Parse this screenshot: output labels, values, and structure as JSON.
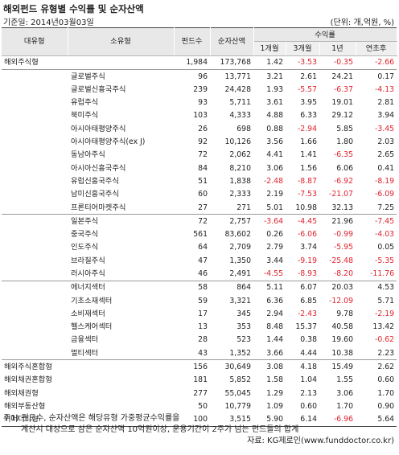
{
  "title": "해외펀드 유형별 수익률 및 순자산액",
  "base_date": "기준일: 2014년03월03일",
  "unit": "(단위: 개,억원, %)",
  "headers": {
    "major": "대유형",
    "minor": "소유형",
    "funds": "펀드수",
    "assets": "순자산액",
    "returns": "수익률",
    "m1": "1개월",
    "m3": "3개월",
    "y1": "1년",
    "ytd": "연초후"
  },
  "rows": [
    {
      "major": "해외주식형",
      "minor": "",
      "funds": "1,984",
      "assets": "173,768",
      "m1": "1.42",
      "m3": "-3.53",
      "y1": "-0.35",
      "ytd": "-2.66",
      "group_start": true
    },
    {
      "major": "",
      "minor": "글로벌주식",
      "funds": "96",
      "assets": "13,771",
      "m1": "3.21",
      "m3": "2.61",
      "y1": "24.21",
      "ytd": "0.17",
      "group_start": true
    },
    {
      "major": "",
      "minor": "글로벌신흥국주식",
      "funds": "239",
      "assets": "24,428",
      "m1": "1.93",
      "m3": "-5.57",
      "y1": "-6.37",
      "ytd": "-4.13"
    },
    {
      "major": "",
      "minor": "유럽주식",
      "funds": "93",
      "assets": "5,711",
      "m1": "3.61",
      "m3": "3.95",
      "y1": "19.01",
      "ytd": "2.81"
    },
    {
      "major": "",
      "minor": "북미주식",
      "funds": "103",
      "assets": "4,333",
      "m1": "4.88",
      "m3": "6.33",
      "y1": "29.12",
      "ytd": "3.94"
    },
    {
      "major": "",
      "minor": "아시아태평양주식",
      "funds": "26",
      "assets": "698",
      "m1": "0.88",
      "m3": "-2.94",
      "y1": "5.85",
      "ytd": "-3.45"
    },
    {
      "major": "",
      "minor": "아시아태평양주식(ex J)",
      "funds": "92",
      "assets": "10,126",
      "m1": "3.56",
      "m3": "1.66",
      "y1": "1.80",
      "ytd": "2.03"
    },
    {
      "major": "",
      "minor": "동남아주식",
      "funds": "72",
      "assets": "2,062",
      "m1": "4.41",
      "m3": "1.41",
      "y1": "-6.35",
      "ytd": "2.65"
    },
    {
      "major": "",
      "minor": "아시아신흥국주식",
      "funds": "84",
      "assets": "8,210",
      "m1": "3.06",
      "m3": "1.56",
      "y1": "6.06",
      "ytd": "0.41"
    },
    {
      "major": "",
      "minor": "유럽신흥국주식",
      "funds": "51",
      "assets": "1,838",
      "m1": "-2.48",
      "m3": "-8.87",
      "y1": "-6.92",
      "ytd": "-8.19"
    },
    {
      "major": "",
      "minor": "남미신흥국주식",
      "funds": "60",
      "assets": "2,333",
      "m1": "2.19",
      "m3": "-7.53",
      "y1": "-21.07",
      "ytd": "-6.09"
    },
    {
      "major": "",
      "minor": "프론티어마켓주식",
      "funds": "27",
      "assets": "271",
      "m1": "5.01",
      "m3": "10.98",
      "y1": "32.13",
      "ytd": "7.25"
    },
    {
      "major": "",
      "minor": "일본주식",
      "funds": "72",
      "assets": "2,757",
      "m1": "-3.64",
      "m3": "-4.45",
      "y1": "21.96",
      "ytd": "-7.45",
      "group_start": true
    },
    {
      "major": "",
      "minor": "중국주식",
      "funds": "561",
      "assets": "83,602",
      "m1": "0.26",
      "m3": "-6.06",
      "y1": "-0.99",
      "ytd": "-4.03"
    },
    {
      "major": "",
      "minor": "인도주식",
      "funds": "64",
      "assets": "2,709",
      "m1": "2.79",
      "m3": "3.74",
      "y1": "-5.95",
      "ytd": "0.05"
    },
    {
      "major": "",
      "minor": "브라질주식",
      "funds": "47",
      "assets": "1,350",
      "m1": "3.44",
      "m3": "-9.19",
      "y1": "-25.48",
      "ytd": "-5.35"
    },
    {
      "major": "",
      "minor": "러시아주식",
      "funds": "46",
      "assets": "2,491",
      "m1": "-4.55",
      "m3": "-8.93",
      "y1": "-8.20",
      "ytd": "-11.76"
    },
    {
      "major": "",
      "minor": "에너지섹터",
      "funds": "58",
      "assets": "864",
      "m1": "5.11",
      "m3": "6.07",
      "y1": "20.03",
      "ytd": "4.53",
      "group_start": true
    },
    {
      "major": "",
      "minor": "기초소재섹터",
      "funds": "59",
      "assets": "3,321",
      "m1": "6.36",
      "m3": "6.85",
      "y1": "-12.09",
      "ytd": "5.71"
    },
    {
      "major": "",
      "minor": "소비재섹터",
      "funds": "17",
      "assets": "345",
      "m1": "2.94",
      "m3": "-2.43",
      "y1": "9.78",
      "ytd": "-2.19"
    },
    {
      "major": "",
      "minor": "헬스케어섹터",
      "funds": "13",
      "assets": "353",
      "m1": "8.48",
      "m3": "15.37",
      "y1": "40.58",
      "ytd": "13.42"
    },
    {
      "major": "",
      "minor": "금융섹터",
      "funds": "28",
      "assets": "523",
      "m1": "1.44",
      "m3": "0.38",
      "y1": "19.60",
      "ytd": "-0.62"
    },
    {
      "major": "",
      "minor": "멀티섹터",
      "funds": "43",
      "assets": "1,352",
      "m1": "3.66",
      "m3": "4.44",
      "y1": "10.38",
      "ytd": "2.23"
    },
    {
      "major": "해외주식혼합형",
      "minor": "",
      "funds": "156",
      "assets": "30,649",
      "m1": "3.08",
      "m3": "4.18",
      "y1": "15.49",
      "ytd": "2.62",
      "group_start": true
    },
    {
      "major": "해외채권혼합형",
      "minor": "",
      "funds": "181",
      "assets": "5,852",
      "m1": "1.58",
      "m3": "1.04",
      "y1": "1.55",
      "ytd": "0.60"
    },
    {
      "major": "해외채권형",
      "minor": "",
      "funds": "277",
      "assets": "55,045",
      "m1": "1.29",
      "m3": "2.13",
      "y1": "3.06",
      "ytd": "1.70"
    },
    {
      "major": "해외부동산형",
      "minor": "",
      "funds": "50",
      "assets": "10,779",
      "m1": "1.09",
      "m3": "0.60",
      "y1": "1.70",
      "ytd": "0.90"
    },
    {
      "major": "커머더티형",
      "minor": "",
      "funds": "100",
      "assets": "3,515",
      "m1": "5.90",
      "m3": "6.14",
      "y1": "-6.96",
      "ytd": "5.64"
    }
  ],
  "notes": {
    "line1": "주1) 펀드수, 순자산액은 해당유형 가중평균수익률을",
    "line2": "계산시 대상으로 삼은 순자산액 10억원이상, 운용기간이 2주가 넘는 펀드들의 합계",
    "source": "자료: KG제로인(www.funddoctor.co.kr)"
  },
  "colors": {
    "negative": "#e0232d",
    "header_bg": "#e8e8e8"
  }
}
